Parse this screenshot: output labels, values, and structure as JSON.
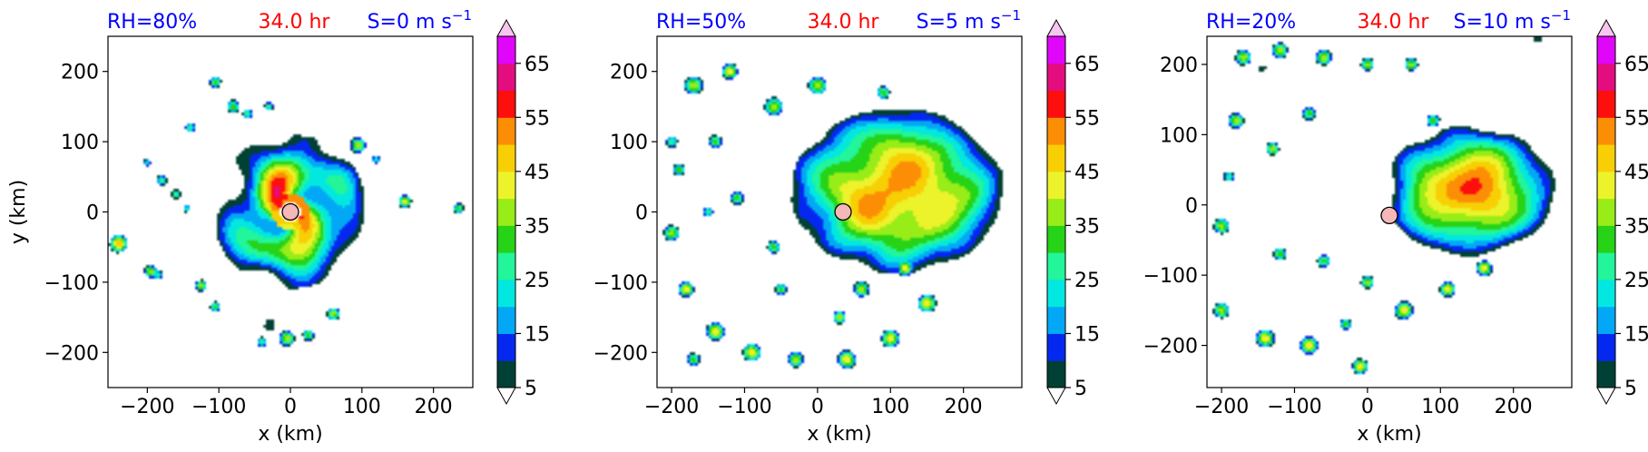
{
  "chart_data": [
    {
      "type": "heatmap",
      "title_left": "RH=80%",
      "title_center": "34.0 hr",
      "title_right": "S=0 m s",
      "title_right_sup": "−1",
      "xlabel": "x (km)",
      "ylabel": "y (km)",
      "xlim": [
        -255,
        255
      ],
      "ylim": [
        -250,
        250
      ],
      "xticks": [
        -200,
        -100,
        0,
        100,
        200
      ],
      "yticks": [
        -200,
        -100,
        0,
        100,
        200
      ],
      "xtick_labels": [
        "−200",
        "−100",
        "0",
        "100",
        "200"
      ],
      "ytick_labels": [
        "−200",
        "−100",
        "0",
        "100",
        "200"
      ],
      "center_marker": [
        0,
        0
      ],
      "field": {
        "main": {
          "x": 0,
          "y": 0,
          "rx": 110,
          "ry": 115,
          "peak": 52,
          "spiral": true
        },
        "blobs": [
          [
            -240,
            -45,
            14,
            50
          ],
          [
            -195,
            -85,
            10,
            40
          ],
          [
            -180,
            45,
            8,
            30
          ],
          [
            -160,
            25,
            7,
            30
          ],
          [
            -145,
            5,
            6,
            25
          ],
          [
            -140,
            120,
            8,
            30
          ],
          [
            -105,
            185,
            9,
            35
          ],
          [
            -80,
            150,
            10,
            35
          ],
          [
            -60,
            140,
            8,
            30
          ],
          [
            -30,
            150,
            7,
            30
          ],
          [
            -125,
            -105,
            9,
            40
          ],
          [
            -185,
            -90,
            7,
            30
          ],
          [
            -105,
            -135,
            8,
            35
          ],
          [
            95,
            95,
            12,
            40
          ],
          [
            160,
            15,
            10,
            45
          ],
          [
            235,
            5,
            8,
            35
          ],
          [
            60,
            -145,
            10,
            40
          ],
          [
            -5,
            -180,
            12,
            40
          ],
          [
            25,
            -175,
            9,
            35
          ],
          [
            -40,
            -185,
            8,
            30
          ],
          [
            120,
            75,
            7,
            25
          ],
          [
            -200,
            70,
            6,
            25
          ]
        ]
      }
    },
    {
      "type": "heatmap",
      "title_left": "RH=50%",
      "title_center": "34.0 hr",
      "title_right": "S=5 m s",
      "title_right_sup": "−1",
      "xlabel": "x (km)",
      "ylabel": "",
      "xlim": [
        -220,
        280
      ],
      "ylim": [
        -250,
        250
      ],
      "xticks": [
        -200,
        -100,
        0,
        100,
        200
      ],
      "yticks": [
        -200,
        -100,
        0,
        100,
        200
      ],
      "xtick_labels": [
        "−200",
        "−100",
        "0",
        "100",
        "200"
      ],
      "ytick_labels": [
        "−200",
        "−100",
        "0",
        "100",
        "200"
      ],
      "center_marker": [
        35,
        0
      ],
      "field": {
        "main": {
          "x": 110,
          "y": 30,
          "rx": 150,
          "ry": 120,
          "peak": 52,
          "spiral": false
        },
        "blobs": [
          [
            -170,
            180,
            14,
            40
          ],
          [
            -120,
            200,
            12,
            45
          ],
          [
            -60,
            150,
            14,
            40
          ],
          [
            0,
            180,
            14,
            40
          ],
          [
            -140,
            100,
            10,
            35
          ],
          [
            -190,
            60,
            9,
            35
          ],
          [
            -200,
            -30,
            12,
            40
          ],
          [
            -180,
            -110,
            12,
            45
          ],
          [
            -140,
            -170,
            14,
            45
          ],
          [
            -90,
            -200,
            14,
            45
          ],
          [
            -30,
            -210,
            12,
            40
          ],
          [
            40,
            -210,
            14,
            45
          ],
          [
            100,
            -180,
            14,
            45
          ],
          [
            150,
            -130,
            14,
            45
          ],
          [
            120,
            -80,
            12,
            45
          ],
          [
            -60,
            -50,
            10,
            35
          ],
          [
            -110,
            20,
            10,
            35
          ],
          [
            -200,
            100,
            9,
            30
          ],
          [
            60,
            -110,
            12,
            40
          ],
          [
            -170,
            -210,
            10,
            35
          ],
          [
            30,
            -150,
            10,
            40
          ],
          [
            -50,
            -110,
            9,
            35
          ],
          [
            -150,
            0,
            8,
            30
          ],
          [
            90,
            170,
            10,
            35
          ]
        ]
      }
    },
    {
      "type": "heatmap",
      "title_left": "RH=20%",
      "title_center": "34.0 hr",
      "title_right": "S=10 m s",
      "title_right_sup": "−1",
      "xlabel": "x (km)",
      "ylabel": "",
      "xlim": [
        -220,
        280
      ],
      "ylim": [
        -260,
        240
      ],
      "xticks": [
        -200,
        -100,
        0,
        100,
        200
      ],
      "yticks": [
        -200,
        -100,
        0,
        100,
        200
      ],
      "xtick_labels": [
        "−200",
        "−100",
        "0",
        "100",
        "200"
      ],
      "ytick_labels": [
        "−200",
        "−100",
        "0",
        "100",
        "200"
      ],
      "center_marker": [
        30,
        -15
      ],
      "field": {
        "main": {
          "x": 140,
          "y": 20,
          "rx": 120,
          "ry": 95,
          "peak": 52,
          "spiral": false
        },
        "blobs": [
          [
            -170,
            210,
            12,
            40
          ],
          [
            -120,
            220,
            12,
            40
          ],
          [
            -60,
            210,
            12,
            40
          ],
          [
            0,
            200,
            10,
            40
          ],
          [
            60,
            200,
            10,
            40
          ],
          [
            -180,
            120,
            12,
            40
          ],
          [
            -130,
            80,
            10,
            40
          ],
          [
            -80,
            130,
            10,
            35
          ],
          [
            -200,
            -30,
            12,
            40
          ],
          [
            -200,
            -150,
            12,
            40
          ],
          [
            -140,
            -190,
            14,
            45
          ],
          [
            -80,
            -200,
            14,
            45
          ],
          [
            -10,
            -230,
            12,
            45
          ],
          [
            50,
            -150,
            14,
            45
          ],
          [
            110,
            -120,
            12,
            45
          ],
          [
            160,
            -90,
            12,
            45
          ],
          [
            -120,
            -70,
            10,
            35
          ],
          [
            -60,
            -80,
            10,
            35
          ],
          [
            0,
            -110,
            10,
            40
          ],
          [
            -190,
            40,
            8,
            30
          ],
          [
            90,
            120,
            10,
            35
          ],
          [
            -30,
            -170,
            9,
            35
          ]
        ]
      }
    }
  ],
  "colorbar": {
    "ticks": [
      5,
      15,
      25,
      35,
      45,
      55,
      65
    ],
    "tick_labels": [
      "5",
      "15",
      "25",
      "35",
      "45",
      "55",
      "65"
    ],
    "levels": [
      5,
      10,
      15,
      20,
      25,
      30,
      35,
      40,
      45,
      50,
      55,
      60,
      65,
      70
    ],
    "colors": [
      "#014035",
      "#0528f0",
      "#02a8f5",
      "#02e8e0",
      "#22f59a",
      "#26d317",
      "#98ec18",
      "#ecf32a",
      "#f8cf04",
      "#fc8e05",
      "#fc0f0c",
      "#e40d80",
      "#e006f9",
      "#c46be6",
      "#f6c6f0"
    ]
  },
  "colors": {
    "title_left": "#0000ff",
    "title_center": "#ff0000",
    "title_right": "#0000ff",
    "marker_fill": "#f4b8b8"
  }
}
